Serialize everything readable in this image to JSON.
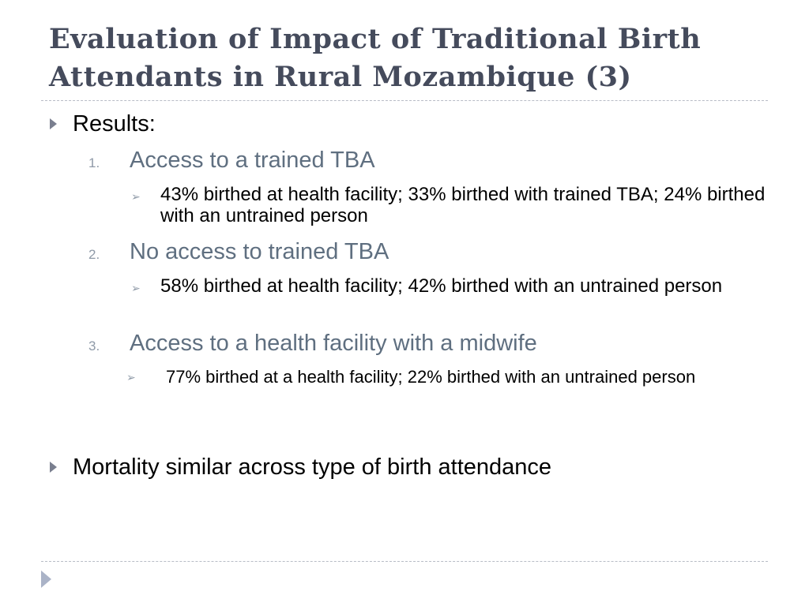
{
  "slide": {
    "title": "Evaluation of Impact of Traditional Birth Attendants in Rural Mozambique (3)",
    "bullets": [
      {
        "text": "Results:",
        "items": [
          {
            "number": "1.",
            "label": "Access to a trained TBA",
            "details": [
              "43% birthed at health facility; 33% birthed with trained TBA; 24% birthed with an untrained person"
            ]
          },
          {
            "number": "2.",
            "label": "No access to trained TBA",
            "details": [
              "58% birthed at health facility; 42% birthed with an untrained person"
            ]
          },
          {
            "number": "3.",
            "label": "Access to a health facility with a midwife",
            "details": [
              "77% birthed at a health facility; 22% birthed with an untrained person"
            ]
          }
        ]
      },
      {
        "text": "Mortality similar across type of birth attendance"
      }
    ]
  },
  "icons": {
    "bullet": "triangle-right-icon",
    "sub_bullet": "arrowhead-right-icon",
    "corner": "triangle-right-icon"
  },
  "colors": {
    "title": "#454b5c",
    "level2_text": "#5f6f80",
    "bullet_marker": "#7a7f8f",
    "numbering": "#8f9aa8",
    "divider": "#b8bcc6",
    "corner_marker": "#aab3c7"
  }
}
